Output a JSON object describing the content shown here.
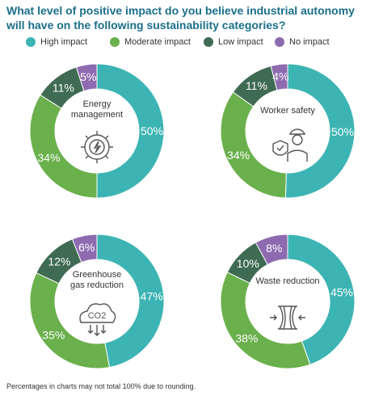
{
  "title": "What level of positive impact do you believe industrial autonomy will have on the following sustainability categories?",
  "legend": [
    {
      "label": "High impact",
      "color": "#3db4b4"
    },
    {
      "label": "Moderate impact",
      "color": "#6ab04c"
    },
    {
      "label": "Low impact",
      "color": "#3f6b52"
    },
    {
      "label": "No impact",
      "color": "#8e6bb0"
    }
  ],
  "footnote": "Percentages in charts may not total 100% due to rounding.",
  "chart_data": [
    {
      "type": "pie",
      "title": "Energy management",
      "icon": "gear-lightning-icon",
      "categories": [
        "High impact",
        "Moderate impact",
        "Low impact",
        "No impact"
      ],
      "values": [
        50,
        34,
        11,
        5
      ],
      "labels": [
        "50%",
        "34%",
        "11%",
        "5%"
      ]
    },
    {
      "type": "pie",
      "title": "Worker safety",
      "icon": "worker-shield-icon",
      "categories": [
        "High impact",
        "Moderate impact",
        "Low impact",
        "No impact"
      ],
      "values": [
        50,
        34,
        11,
        4
      ],
      "labels": [
        "50%",
        "34%",
        "11%",
        "4%"
      ]
    },
    {
      "type": "pie",
      "title": "Greenhouse gas reduction",
      "icon": "co2-cloud-icon",
      "categories": [
        "High impact",
        "Moderate impact",
        "Low impact",
        "No impact"
      ],
      "values": [
        47,
        35,
        12,
        6
      ],
      "labels": [
        "47%",
        "35%",
        "12%",
        "6%"
      ]
    },
    {
      "type": "pie",
      "title": "Waste reduction",
      "icon": "compressed-bin-icon",
      "categories": [
        "High impact",
        "Moderate impact",
        "Low impact",
        "No impact"
      ],
      "values": [
        45,
        38,
        10,
        8
      ],
      "labels": [
        "45%",
        "38%",
        "10%",
        "8%"
      ]
    }
  ]
}
